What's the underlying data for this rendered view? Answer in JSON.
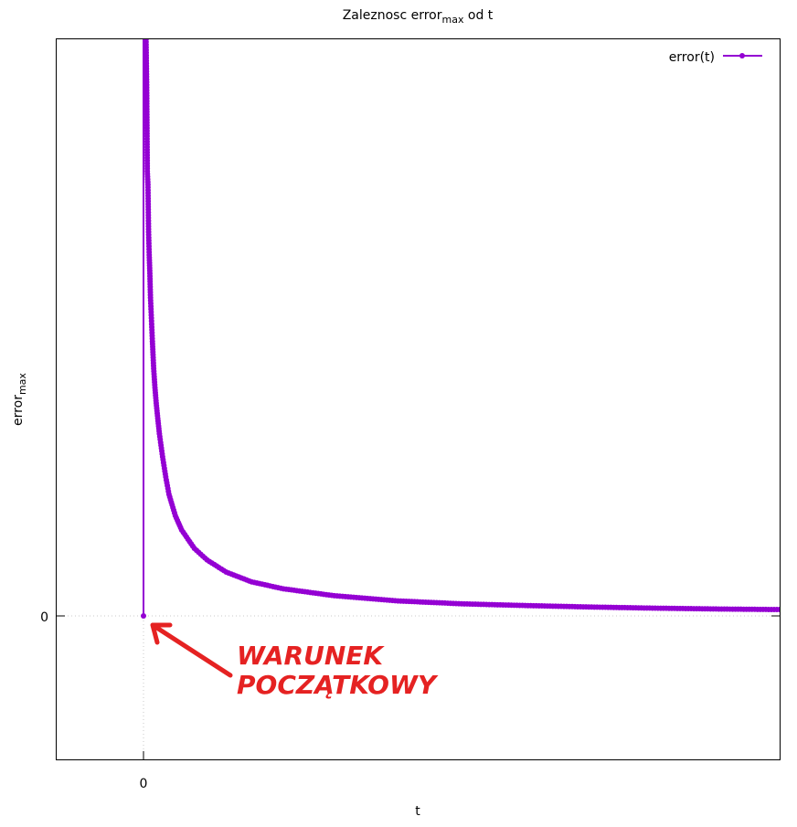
{
  "chart_data": {
    "type": "line",
    "title": {
      "main": "Zaleznosc error",
      "sub": "max",
      "tail": " od t"
    },
    "xlabel": "t",
    "ylabel": {
      "main": "error",
      "sub": "max"
    },
    "x_tick_labels": [
      "0"
    ],
    "y_tick_labels": [
      "0"
    ],
    "grid": "zero lines only (dotted)",
    "legend_position": "top-right",
    "series": [
      {
        "name": "error(t)",
        "color": "#9400d3",
        "marker": "circle",
        "points": [
          [
            0,
            0
          ],
          [
            0.004,
            100
          ],
          [
            0.005,
            92.1
          ],
          [
            0.006,
            77.1
          ],
          [
            0.007,
            74.8
          ],
          [
            0.008,
            66.6
          ],
          [
            0.009,
            62.6
          ],
          [
            0.01,
            59.4
          ],
          [
            0.011,
            55.2
          ],
          [
            0.012,
            52.7
          ],
          [
            0.013,
            50.1
          ],
          [
            0.014,
            47.6
          ],
          [
            0.015,
            45.3
          ],
          [
            0.016,
            42.9
          ],
          [
            0.018,
            39.6
          ],
          [
            0.02,
            36.9
          ],
          [
            0.022,
            34.7
          ],
          [
            0.025,
            31.6
          ],
          [
            0.03,
            27.6
          ],
          [
            0.035,
            24.1
          ],
          [
            0.04,
            21.1
          ],
          [
            0.05,
            17.4
          ],
          [
            0.06,
            14.9
          ],
          [
            0.08,
            11.7
          ],
          [
            0.1,
            9.7
          ],
          [
            0.13,
            7.6
          ],
          [
            0.17,
            5.9
          ],
          [
            0.22,
            4.7
          ],
          [
            0.3,
            3.5
          ],
          [
            0.4,
            2.6
          ],
          [
            0.5,
            2.1
          ],
          [
            0.6,
            1.8
          ],
          [
            0.7,
            1.55
          ],
          [
            0.8,
            1.35
          ],
          [
            0.9,
            1.2
          ],
          [
            1.0,
            1.1
          ]
        ]
      }
    ],
    "annotation": {
      "lines": [
        "WARUNEK",
        "POCZĄTKOWY"
      ],
      "color": "#e52222",
      "points_to": [
        0,
        0
      ]
    }
  }
}
